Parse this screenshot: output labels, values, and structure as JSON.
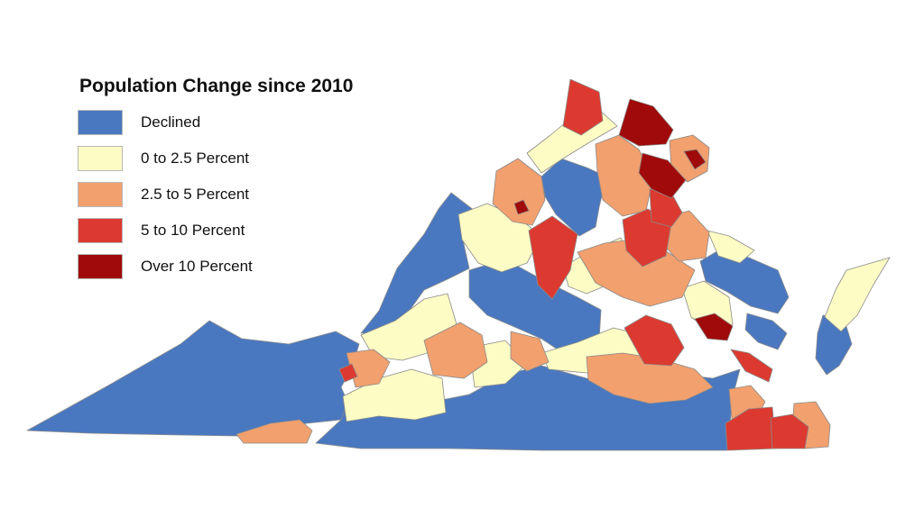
{
  "legend": {
    "title": "Population Change since 2010",
    "items": [
      {
        "label": "Declined",
        "color": "#4a78c0"
      },
      {
        "label": "0 to 2.5 Percent",
        "color": "#fdfcc4"
      },
      {
        "label": "2.5 to 5 Percent",
        "color": "#f2a06e"
      },
      {
        "label": "5 to 10 Percent",
        "color": "#dc3a30"
      },
      {
        "label": "Over 10 Percent",
        "color": "#a00a0a"
      }
    ]
  },
  "map": {
    "region": "Virginia",
    "unit": "counties and independent cities",
    "classes_shown": [
      "Declined",
      "0 to 2.5 Percent",
      "2.5 to 5 Percent",
      "5 to 10 Percent",
      "Over 10 Percent"
    ]
  }
}
